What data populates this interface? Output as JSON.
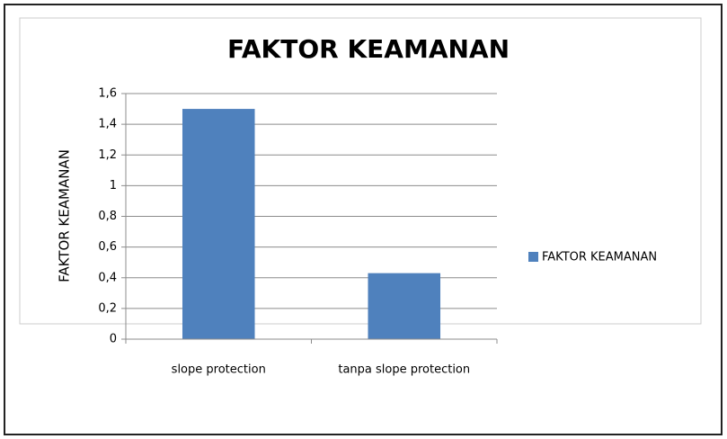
{
  "chart_data": {
    "type": "bar",
    "title": "FAKTOR KEAMANAN",
    "y_label": "FAKTOR KEAMANAN",
    "categories": [
      "slope protection",
      "tanpa slope protection"
    ],
    "series": [
      {
        "name": "FAKTOR KEAMANAN",
        "color": "#4f81bd",
        "values": [
          1.5,
          0.43
        ]
      }
    ],
    "ylim": [
      0,
      1.6
    ],
    "yticks": [
      0,
      {
        "value": 0.2,
        "label": "0,2"
      },
      {
        "value": 0.4,
        "label": "0,4"
      },
      {
        "value": 0.6,
        "label": "0,6"
      },
      {
        "value": 0.8,
        "label": "0,8"
      },
      1,
      {
        "value": 1.2,
        "label": "1,2"
      },
      {
        "value": 1.4,
        "label": "1,4"
      },
      {
        "value": 1.6,
        "label": "1,6"
      }
    ],
    "grid": true,
    "legend": "right"
  }
}
